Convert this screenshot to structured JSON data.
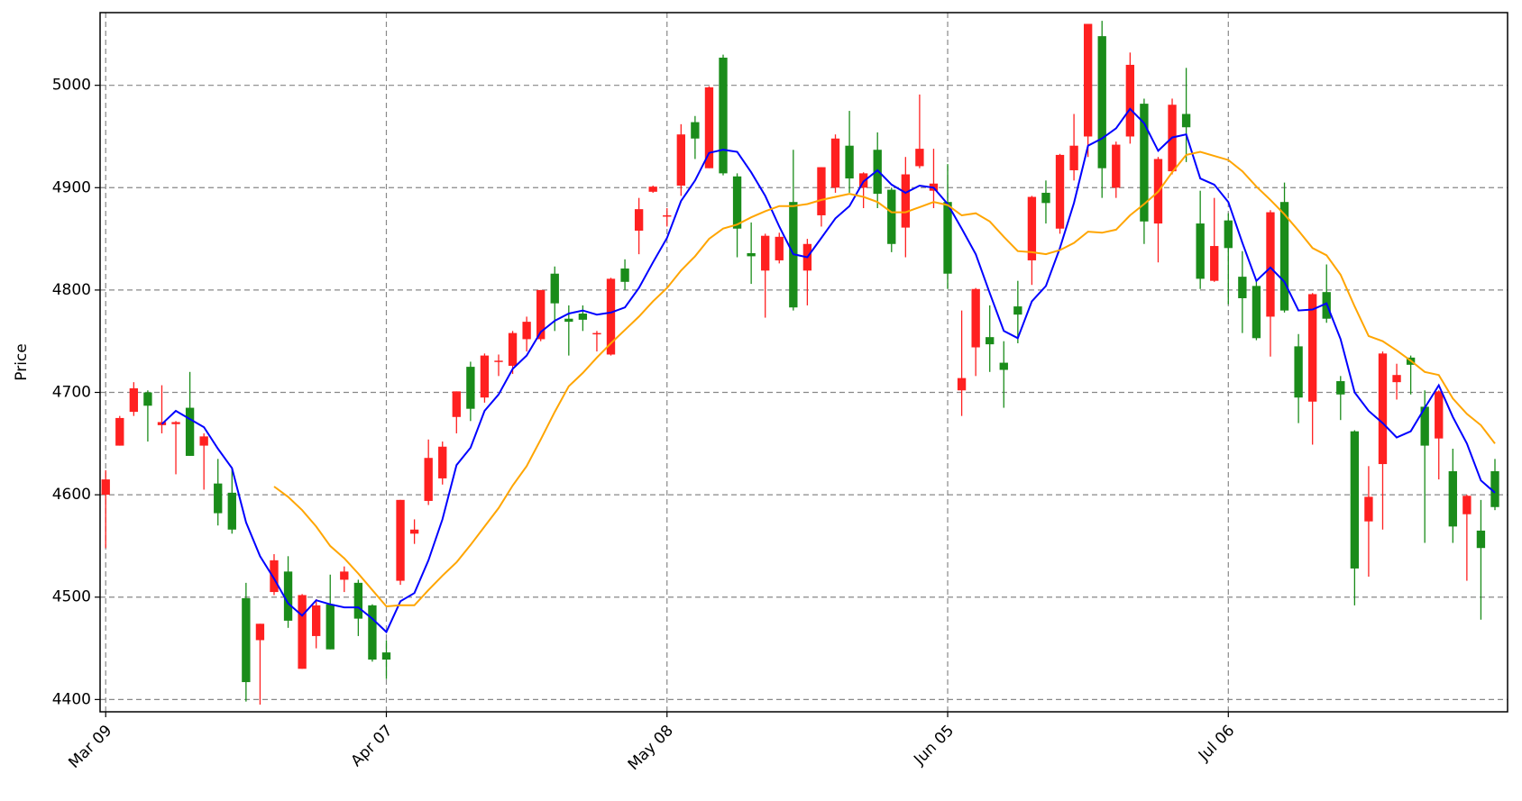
{
  "chart_data": {
    "type": "candlestick",
    "ylabel": "Price",
    "categories": [
      "Mar 09",
      null,
      null,
      null,
      null,
      null,
      null,
      null,
      null,
      null,
      null,
      null,
      null,
      null,
      null,
      null,
      null,
      null,
      null,
      null,
      "Apr 07",
      null,
      null,
      null,
      null,
      null,
      null,
      null,
      null,
      null,
      null,
      null,
      null,
      null,
      null,
      null,
      null,
      null,
      null,
      null,
      "May 08",
      null,
      null,
      null,
      null,
      null,
      null,
      null,
      null,
      null,
      null,
      null,
      null,
      null,
      null,
      null,
      null,
      null,
      null,
      null,
      "Jun 05",
      null,
      null,
      null,
      null,
      null,
      null,
      null,
      null,
      null,
      null,
      null,
      null,
      null,
      null,
      null,
      null,
      null,
      null,
      null,
      "Jul 06",
      null,
      null,
      null,
      null,
      null,
      null,
      null,
      null,
      null,
      null,
      null,
      null,
      null,
      null,
      null,
      null,
      null,
      null,
      null
    ],
    "open": [
      4600,
      4648,
      4681,
      4700,
      4668,
      4669,
      4685,
      4648,
      4611,
      4602,
      4499,
      4458,
      4505,
      4525,
      4430,
      4462,
      4493,
      4517,
      4514,
      4492,
      4446,
      4516,
      4562,
      4594,
      4616,
      4676,
      4725,
      4695,
      4730,
      4726,
      4752,
      4752,
      4816,
      4772,
      4777,
      4757,
      4737,
      4821,
      4858,
      4896,
      4872,
      4902,
      4964,
      4919,
      5027,
      4911,
      4836,
      4819,
      4829,
      4886,
      4819,
      4873,
      4900,
      4941,
      4900,
      4937,
      4898,
      4861,
      4921,
      4897,
      4886,
      4702,
      4744,
      4754,
      4729,
      4784,
      4829,
      4895,
      4860,
      4917,
      4950,
      5048,
      4900,
      4950,
      4982,
      4865,
      4916,
      4972,
      4865,
      4809,
      4868,
      4813,
      4804,
      4774,
      4886,
      4745,
      4691,
      4798,
      4711,
      4662,
      4574,
      4630,
      4710,
      4734,
      4686,
      4655,
      4623,
      4581,
      4565,
      4623
    ],
    "high": [
      4624,
      4677,
      4710,
      4702,
      4707,
      4672,
      4720,
      4660,
      4635,
      4627,
      4514,
      4474,
      4542,
      4540,
      4503,
      4498,
      4522,
      4530,
      4517,
      4493,
      4458,
      4595,
      4576,
      4654,
      4652,
      4701,
      4730,
      4738,
      4737,
      4760,
      4774,
      4800,
      4823,
      4785,
      4785,
      4760,
      4812,
      4830,
      4890,
      4902,
      4880,
      4962,
      4970,
      4999,
      5030,
      4914,
      4866,
      4855,
      4856,
      4937,
      4850,
      4920,
      4952,
      4975,
      4915,
      4954,
      4900,
      4930,
      4991,
      4938,
      4923,
      4780,
      4802,
      4785,
      4750,
      4809,
      4892,
      4907,
      4933,
      4972,
      5060,
      5063,
      4945,
      5032,
      4987,
      4930,
      4987,
      5017,
      4897,
      4890,
      4875,
      4838,
      4810,
      4878,
      4905,
      4757,
      4797,
      4825,
      4716,
      4663,
      4628,
      4740,
      4728,
      4736,
      4702,
      4702,
      4645,
      4600,
      4595,
      4635
    ],
    "low": [
      4548,
      4648,
      4677,
      4652,
      4660,
      4620,
      4638,
      4605,
      4570,
      4562,
      4398,
      4395,
      4502,
      4470,
      4430,
      4450,
      4449,
      4505,
      4462,
      4437,
      4420,
      4512,
      4552,
      4590,
      4610,
      4660,
      4672,
      4690,
      4716,
      4718,
      4740,
      4750,
      4760,
      4736,
      4760,
      4740,
      4736,
      4800,
      4835,
      4895,
      4862,
      4892,
      4928,
      4919,
      4912,
      4832,
      4806,
      4773,
      4826,
      4780,
      4785,
      4862,
      4895,
      4895,
      4880,
      4880,
      4837,
      4832,
      4919,
      4880,
      4801,
      4677,
      4716,
      4720,
      4685,
      4748,
      4805,
      4865,
      4855,
      4907,
      4930,
      4890,
      4890,
      4943,
      4845,
      4827,
      4913,
      4925,
      4801,
      4808,
      4786,
      4758,
      4751,
      4735,
      4778,
      4670,
      4649,
      4768,
      4673,
      4492,
      4520,
      4566,
      4693,
      4698,
      4553,
      4615,
      4553,
      4516,
      4478,
      4585
    ],
    "close": [
      4615,
      4675,
      4704,
      4687,
      4671,
      4671,
      4638,
      4657,
      4582,
      4566,
      4417,
      4474,
      4536,
      4477,
      4502,
      4492,
      4449,
      4525,
      4479,
      4439,
      4439,
      4595,
      4566,
      4636,
      4647,
      4701,
      4684,
      4736,
      4731,
      4758,
      4769,
      4800,
      4787,
      4769,
      4771,
      4758,
      4811,
      4808,
      4879,
      4901,
      4873,
      4952,
      4948,
      4998,
      4914,
      4860,
      4833,
      4853,
      4852,
      4783,
      4845,
      4920,
      4948,
      4909,
      4914,
      4894,
      4845,
      4913,
      4938,
      4904,
      4816,
      4714,
      4801,
      4747,
      4722,
      4776,
      4891,
      4885,
      4932,
      4941,
      5060,
      4919,
      4942,
      5020,
      4867,
      4928,
      4981,
      4959,
      4811,
      4843,
      4841,
      4792,
      4753,
      4876,
      4780,
      4695,
      4796,
      4772,
      4698,
      4528,
      4598,
      4738,
      4717,
      4727,
      4648,
      4701,
      4569,
      4599,
      4548,
      4588
    ],
    "up_color": "#ff2020",
    "down_color": "#1a8c1a",
    "series": [
      {
        "color": "#0000ff",
        "values": [
          null,
          null,
          null,
          null,
          4669,
          4682,
          4674,
          4666,
          4645,
          4626,
          4573,
          4540,
          4518,
          4494,
          4482,
          4497,
          4493,
          4490,
          4490,
          4479,
          4466,
          4496,
          4504,
          4536,
          4576,
          4629,
          4646,
          4682,
          4698,
          4723,
          4736,
          4759,
          4770,
          4777,
          4780,
          4776,
          4778,
          4783,
          4802,
          4827,
          4851,
          4887,
          4907,
          4934,
          4937,
          4935,
          4915,
          4892,
          4862,
          4835,
          4832,
          4851,
          4870,
          4882,
          4906,
          4917,
          4903,
          4895,
          4902,
          4900,
          4884,
          4860,
          4835,
          4797,
          4760,
          4753,
          4789,
          4804,
          4841,
          4885,
          4941,
          4948,
          4958,
          4977,
          4963,
          4936,
          4949,
          4952,
          4909,
          4903,
          4886,
          4846,
          4809,
          4822,
          4808,
          4780,
          4781,
          4787,
          4752,
          4700,
          4682,
          4670,
          4656,
          4662,
          4685,
          4707,
          4676,
          4650,
          4614,
          4602
        ]
      },
      {
        "color": "#ffa500",
        "values": [
          null,
          null,
          null,
          null,
          null,
          null,
          null,
          null,
          null,
          null,
          null,
          null,
          4608,
          4598,
          4585,
          4569,
          4550,
          4538,
          4523,
          4507,
          4491,
          4492,
          4492,
          4507,
          4521,
          4534,
          4551,
          4569,
          4587,
          4609,
          4628,
          4654,
          4681,
          4706,
          4719,
          4734,
          4748,
          4761,
          4774,
          4789,
          4802,
          4819,
          4833,
          4850,
          4860,
          4864,
          4871,
          4877,
          4882,
          4882,
          4884,
          4888,
          4891,
          4894,
          4891,
          4886,
          4876,
          4876,
          4881,
          4886,
          4883,
          4873,
          4875,
          4867,
          4852,
          4838,
          4837,
          4835,
          4839,
          4846,
          4857,
          4856,
          4859,
          4873,
          4884,
          4896,
          4915,
          4932,
          4935,
          4931,
          4927,
          4916,
          4901,
          4888,
          4874,
          4858,
          4841,
          4834,
          4815,
          4784,
          4755,
          4750,
          4741,
          4731,
          4720,
          4717,
          4694,
          4679,
          4668,
          4650
        ]
      }
    ],
    "ylim": [
      4388,
      5071
    ],
    "yticks": [
      4400,
      4500,
      4600,
      4700,
      4800,
      4900,
      5000
    ],
    "grid": true
  }
}
